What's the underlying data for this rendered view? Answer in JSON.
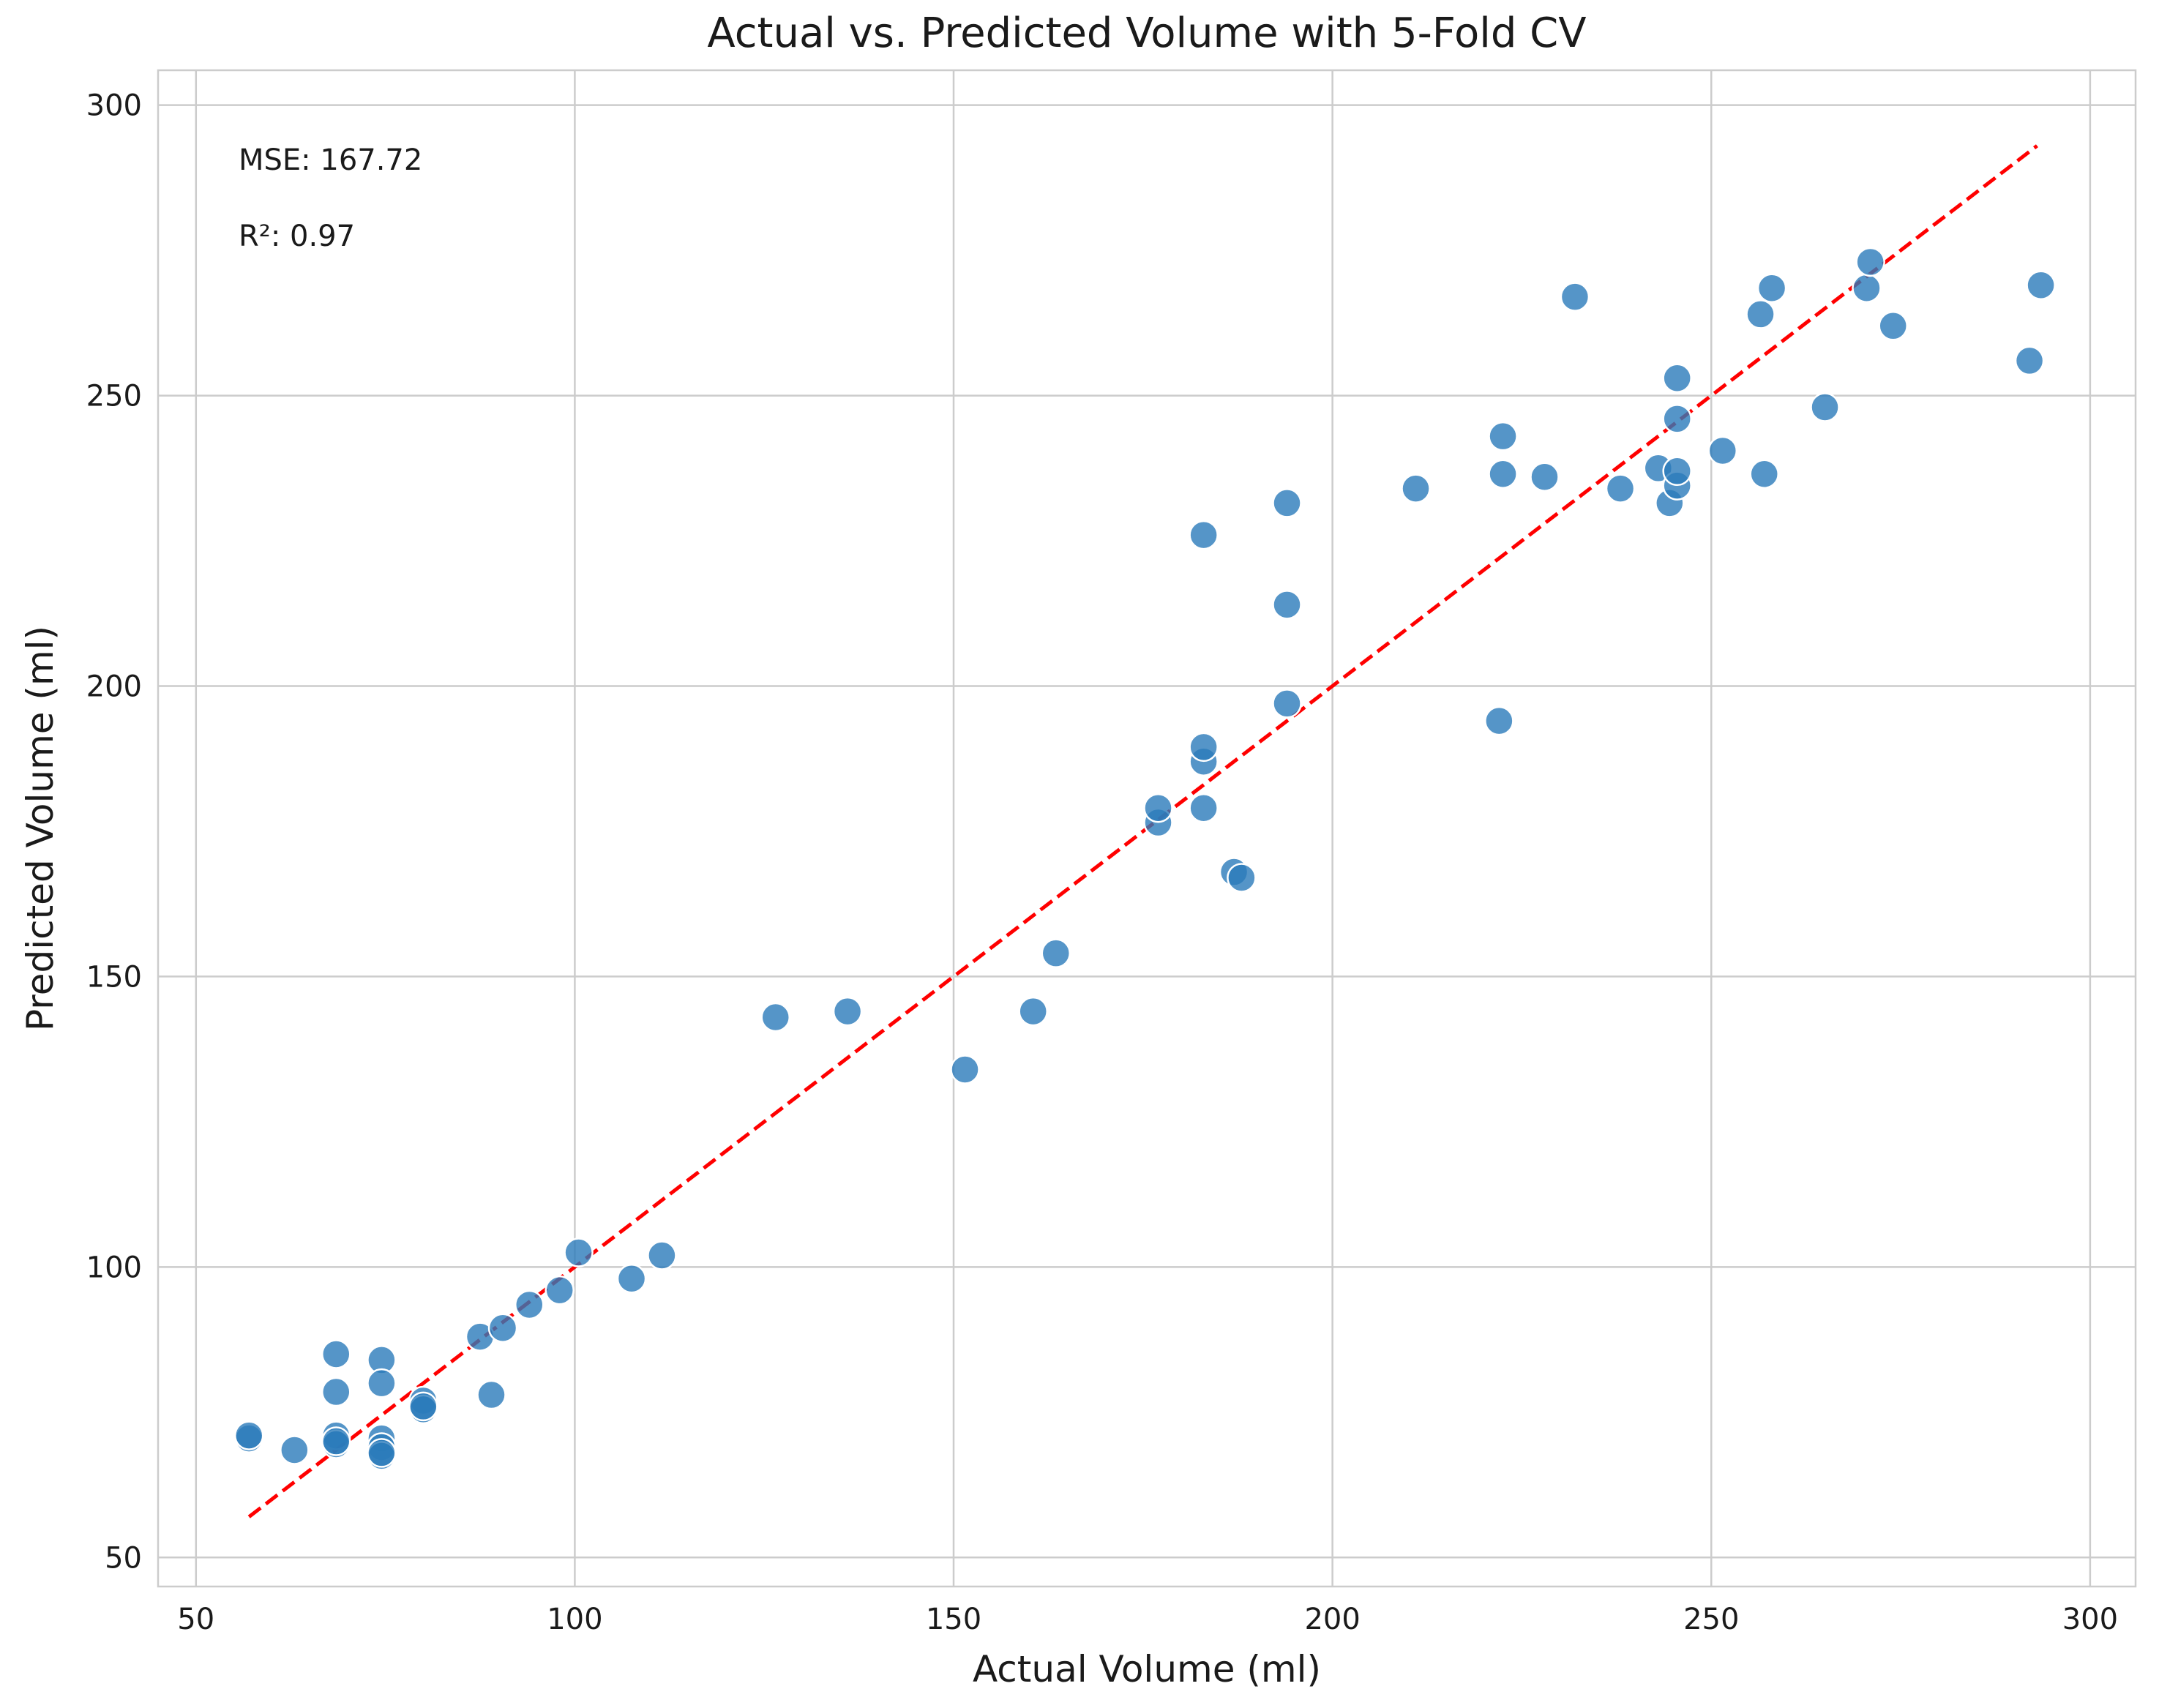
{
  "chart_data": {
    "type": "scatter",
    "title": "Actual vs. Predicted Volume with 5-Fold CV",
    "xlabel": "Actual Volume (ml)",
    "ylabel": "Predicted Volume (ml)",
    "xlim": [
      45,
      306
    ],
    "ylim": [
      45,
      306
    ],
    "xticks": [
      50,
      100,
      150,
      200,
      250,
      300
    ],
    "yticks": [
      50,
      100,
      150,
      200,
      250,
      300
    ],
    "grid": true,
    "annotations": [
      "MSE: 167.72",
      "R²: 0.97"
    ],
    "colors": {
      "points": "#2b7bba",
      "reference_line": "#ff0000",
      "grid": "#cccccc"
    },
    "reference_line": {
      "style": "dashed",
      "x": [
        57,
        293
      ],
      "y": [
        57,
        293
      ]
    },
    "points": [
      {
        "x": 57,
        "y": 70.5
      },
      {
        "x": 57,
        "y": 71
      },
      {
        "x": 63,
        "y": 68.5
      },
      {
        "x": 68.5,
        "y": 85
      },
      {
        "x": 68.5,
        "y": 78.5
      },
      {
        "x": 68.5,
        "y": 71
      },
      {
        "x": 68.5,
        "y": 69.5
      },
      {
        "x": 68.5,
        "y": 70
      },
      {
        "x": 74.5,
        "y": 84
      },
      {
        "x": 74.5,
        "y": 80
      },
      {
        "x": 74.5,
        "y": 70.5
      },
      {
        "x": 74.5,
        "y": 69
      },
      {
        "x": 74.5,
        "y": 67.5
      },
      {
        "x": 74.5,
        "y": 68
      },
      {
        "x": 80,
        "y": 77
      },
      {
        "x": 80,
        "y": 75.5
      },
      {
        "x": 80,
        "y": 76
      },
      {
        "x": 87.5,
        "y": 88
      },
      {
        "x": 89,
        "y": 78
      },
      {
        "x": 90.5,
        "y": 89.5
      },
      {
        "x": 94,
        "y": 93.5
      },
      {
        "x": 98,
        "y": 96
      },
      {
        "x": 100.5,
        "y": 102.5
      },
      {
        "x": 107.5,
        "y": 98
      },
      {
        "x": 111.5,
        "y": 102
      },
      {
        "x": 126.5,
        "y": 143
      },
      {
        "x": 136,
        "y": 144
      },
      {
        "x": 151.5,
        "y": 134
      },
      {
        "x": 160.5,
        "y": 144
      },
      {
        "x": 163.5,
        "y": 154
      },
      {
        "x": 177,
        "y": 176.5
      },
      {
        "x": 177,
        "y": 179
      },
      {
        "x": 183,
        "y": 179
      },
      {
        "x": 183,
        "y": 187
      },
      {
        "x": 183,
        "y": 189.5
      },
      {
        "x": 183,
        "y": 226
      },
      {
        "x": 187,
        "y": 168
      },
      {
        "x": 188,
        "y": 167
      },
      {
        "x": 194,
        "y": 197
      },
      {
        "x": 194,
        "y": 214
      },
      {
        "x": 194,
        "y": 231.5
      },
      {
        "x": 211,
        "y": 234
      },
      {
        "x": 222,
        "y": 194
      },
      {
        "x": 222.5,
        "y": 236.5
      },
      {
        "x": 222.5,
        "y": 243
      },
      {
        "x": 228,
        "y": 236
      },
      {
        "x": 232,
        "y": 267
      },
      {
        "x": 238,
        "y": 234
      },
      {
        "x": 243,
        "y": 237.5
      },
      {
        "x": 244.5,
        "y": 231.5
      },
      {
        "x": 245.5,
        "y": 234.5
      },
      {
        "x": 245.5,
        "y": 237
      },
      {
        "x": 245.5,
        "y": 246
      },
      {
        "x": 245.5,
        "y": 253
      },
      {
        "x": 251.5,
        "y": 240.5
      },
      {
        "x": 256.5,
        "y": 264
      },
      {
        "x": 257,
        "y": 236.5
      },
      {
        "x": 258,
        "y": 268.5
      },
      {
        "x": 265,
        "y": 248
      },
      {
        "x": 270.5,
        "y": 268.5
      },
      {
        "x": 271,
        "y": 273
      },
      {
        "x": 274,
        "y": 262
      },
      {
        "x": 292,
        "y": 256
      },
      {
        "x": 293.5,
        "y": 269
      }
    ]
  }
}
